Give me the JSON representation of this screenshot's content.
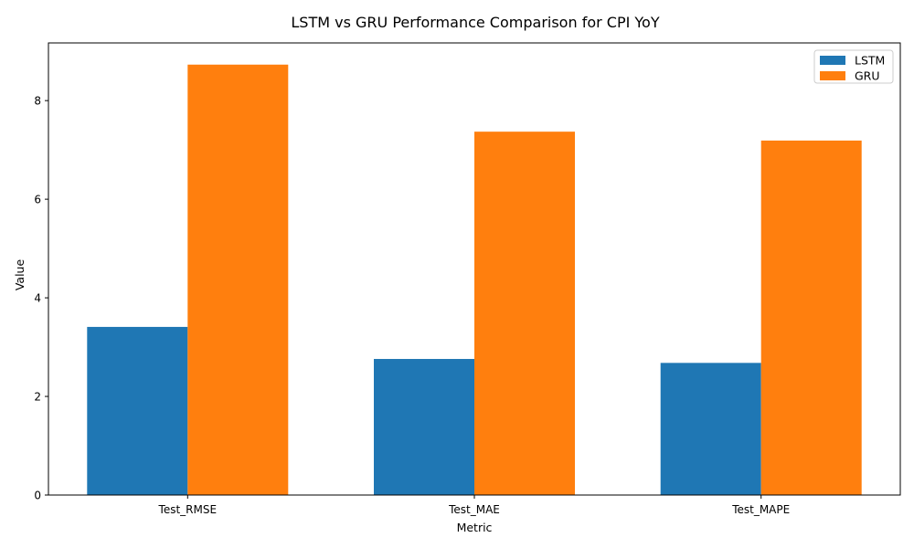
{
  "chart_data": {
    "type": "bar",
    "title": "LSTM vs GRU Performance Comparison for CPI YoY",
    "xlabel": "Metric",
    "ylabel": "Value",
    "categories": [
      "Test_RMSE",
      "Test_MAE",
      "Test_MAPE"
    ],
    "series": [
      {
        "name": "LSTM",
        "color": "#1f77b4",
        "values": [
          3.41,
          2.76,
          2.68
        ]
      },
      {
        "name": "GRU",
        "color": "#ff7f0e",
        "values": [
          8.73,
          7.37,
          7.19
        ]
      }
    ],
    "ylim": [
      0,
      9.17
    ],
    "yticks": [
      0,
      2,
      4,
      6,
      8
    ],
    "grid": false,
    "legend": "top-right"
  }
}
